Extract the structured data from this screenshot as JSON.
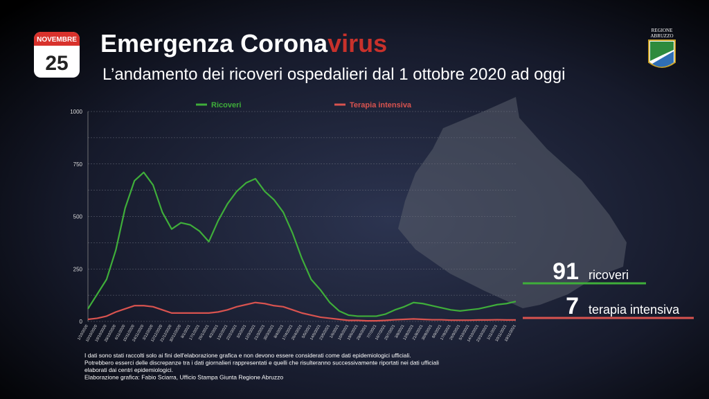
{
  "header": {
    "calendar_month": "NOVEMBRE",
    "calendar_day": "25",
    "title_main": "Emergenza Corona",
    "title_accent": "virus",
    "subtitle": "L’andamento dei ricoveri ospedalieri dal 1 ottobre 2020 ad oggi",
    "logo_text": [
      "REGIONE",
      "ABRUZZO"
    ]
  },
  "chart_data": {
    "type": "line",
    "categories": [
      "1/10/2020",
      "10/10/2020",
      "19/10/2020",
      "28/10/2020",
      "6/11/2020",
      "15/11/2020",
      "24/11/2020",
      "3/12/2020",
      "12/12/2020",
      "21/12/2020",
      "30/12/2020",
      "8/1/2021",
      "17/1/2021",
      "26/1/2021",
      "4/2/2021",
      "13/2/2021",
      "22/2/2021",
      "3/3/2021",
      "12/3/2021",
      "21/3/2021",
      "30/3/2021",
      "8/4/2021",
      "17/4/2021",
      "26/4/2021",
      "5/5/2021",
      "14/5/2021",
      "23/5/2021",
      "1/6/2021",
      "10/6/2021",
      "19/6/2021",
      "28/6/2021",
      "7/7/2021",
      "16/7/2021",
      "25/7/2021",
      "3/8/2021",
      "12/8/2021",
      "21/8/2021",
      "30/8/2021",
      "8/9/2021",
      "17/9/2021",
      "26/9/2021",
      "5/10/2021",
      "14/10/2021",
      "23/10/2021",
      "1/11/2021",
      "10/11/2021",
      "19/11/2021"
    ],
    "series": [
      {
        "name": "Ricoveri",
        "color": "#3fae3a",
        "values": [
          60,
          130,
          200,
          340,
          540,
          670,
          710,
          650,
          520,
          440,
          470,
          460,
          430,
          380,
          480,
          560,
          620,
          660,
          680,
          620,
          580,
          520,
          420,
          300,
          200,
          150,
          90,
          50,
          30,
          25,
          25,
          25,
          35,
          55,
          70,
          90,
          85,
          75,
          65,
          55,
          50,
          55,
          60,
          70,
          80,
          85,
          95
        ]
      },
      {
        "name": "Terapia intensiva",
        "color": "#d9534f",
        "values": [
          10,
          15,
          25,
          45,
          60,
          75,
          75,
          70,
          55,
          40,
          40,
          40,
          40,
          40,
          45,
          55,
          70,
          80,
          90,
          85,
          75,
          70,
          55,
          40,
          30,
          20,
          15,
          10,
          5,
          5,
          3,
          3,
          5,
          8,
          10,
          12,
          10,
          8,
          8,
          6,
          6,
          6,
          7,
          7,
          8,
          7,
          7
        ]
      }
    ],
    "ylim": [
      0,
      1000
    ],
    "yticks": [
      0,
      250,
      500,
      750,
      1000
    ],
    "minor_yticks": [
      125,
      375,
      625,
      875
    ],
    "grid": true,
    "current": [
      {
        "value": 91,
        "label": "ricoveri"
      },
      {
        "value": 7,
        "label": "terapia intensiva"
      }
    ]
  },
  "footnote": [
    "I dati sono stati raccolti solo ai fini dell'elaborazione grafica e non devono essere considerati come dati epidemiologici ufficiali.",
    "Potrebbero esserci delle discrepanze tra i dati giornalieri rappresentati e quelli che risulteranno successivamente riportati nei dati ufficiali",
    "elaborati dai centri epidemiologici.",
    "Elaborazione grafica: Fabio Sciarra, Ufficio Stampa Giunta Regione Abruzzo"
  ]
}
